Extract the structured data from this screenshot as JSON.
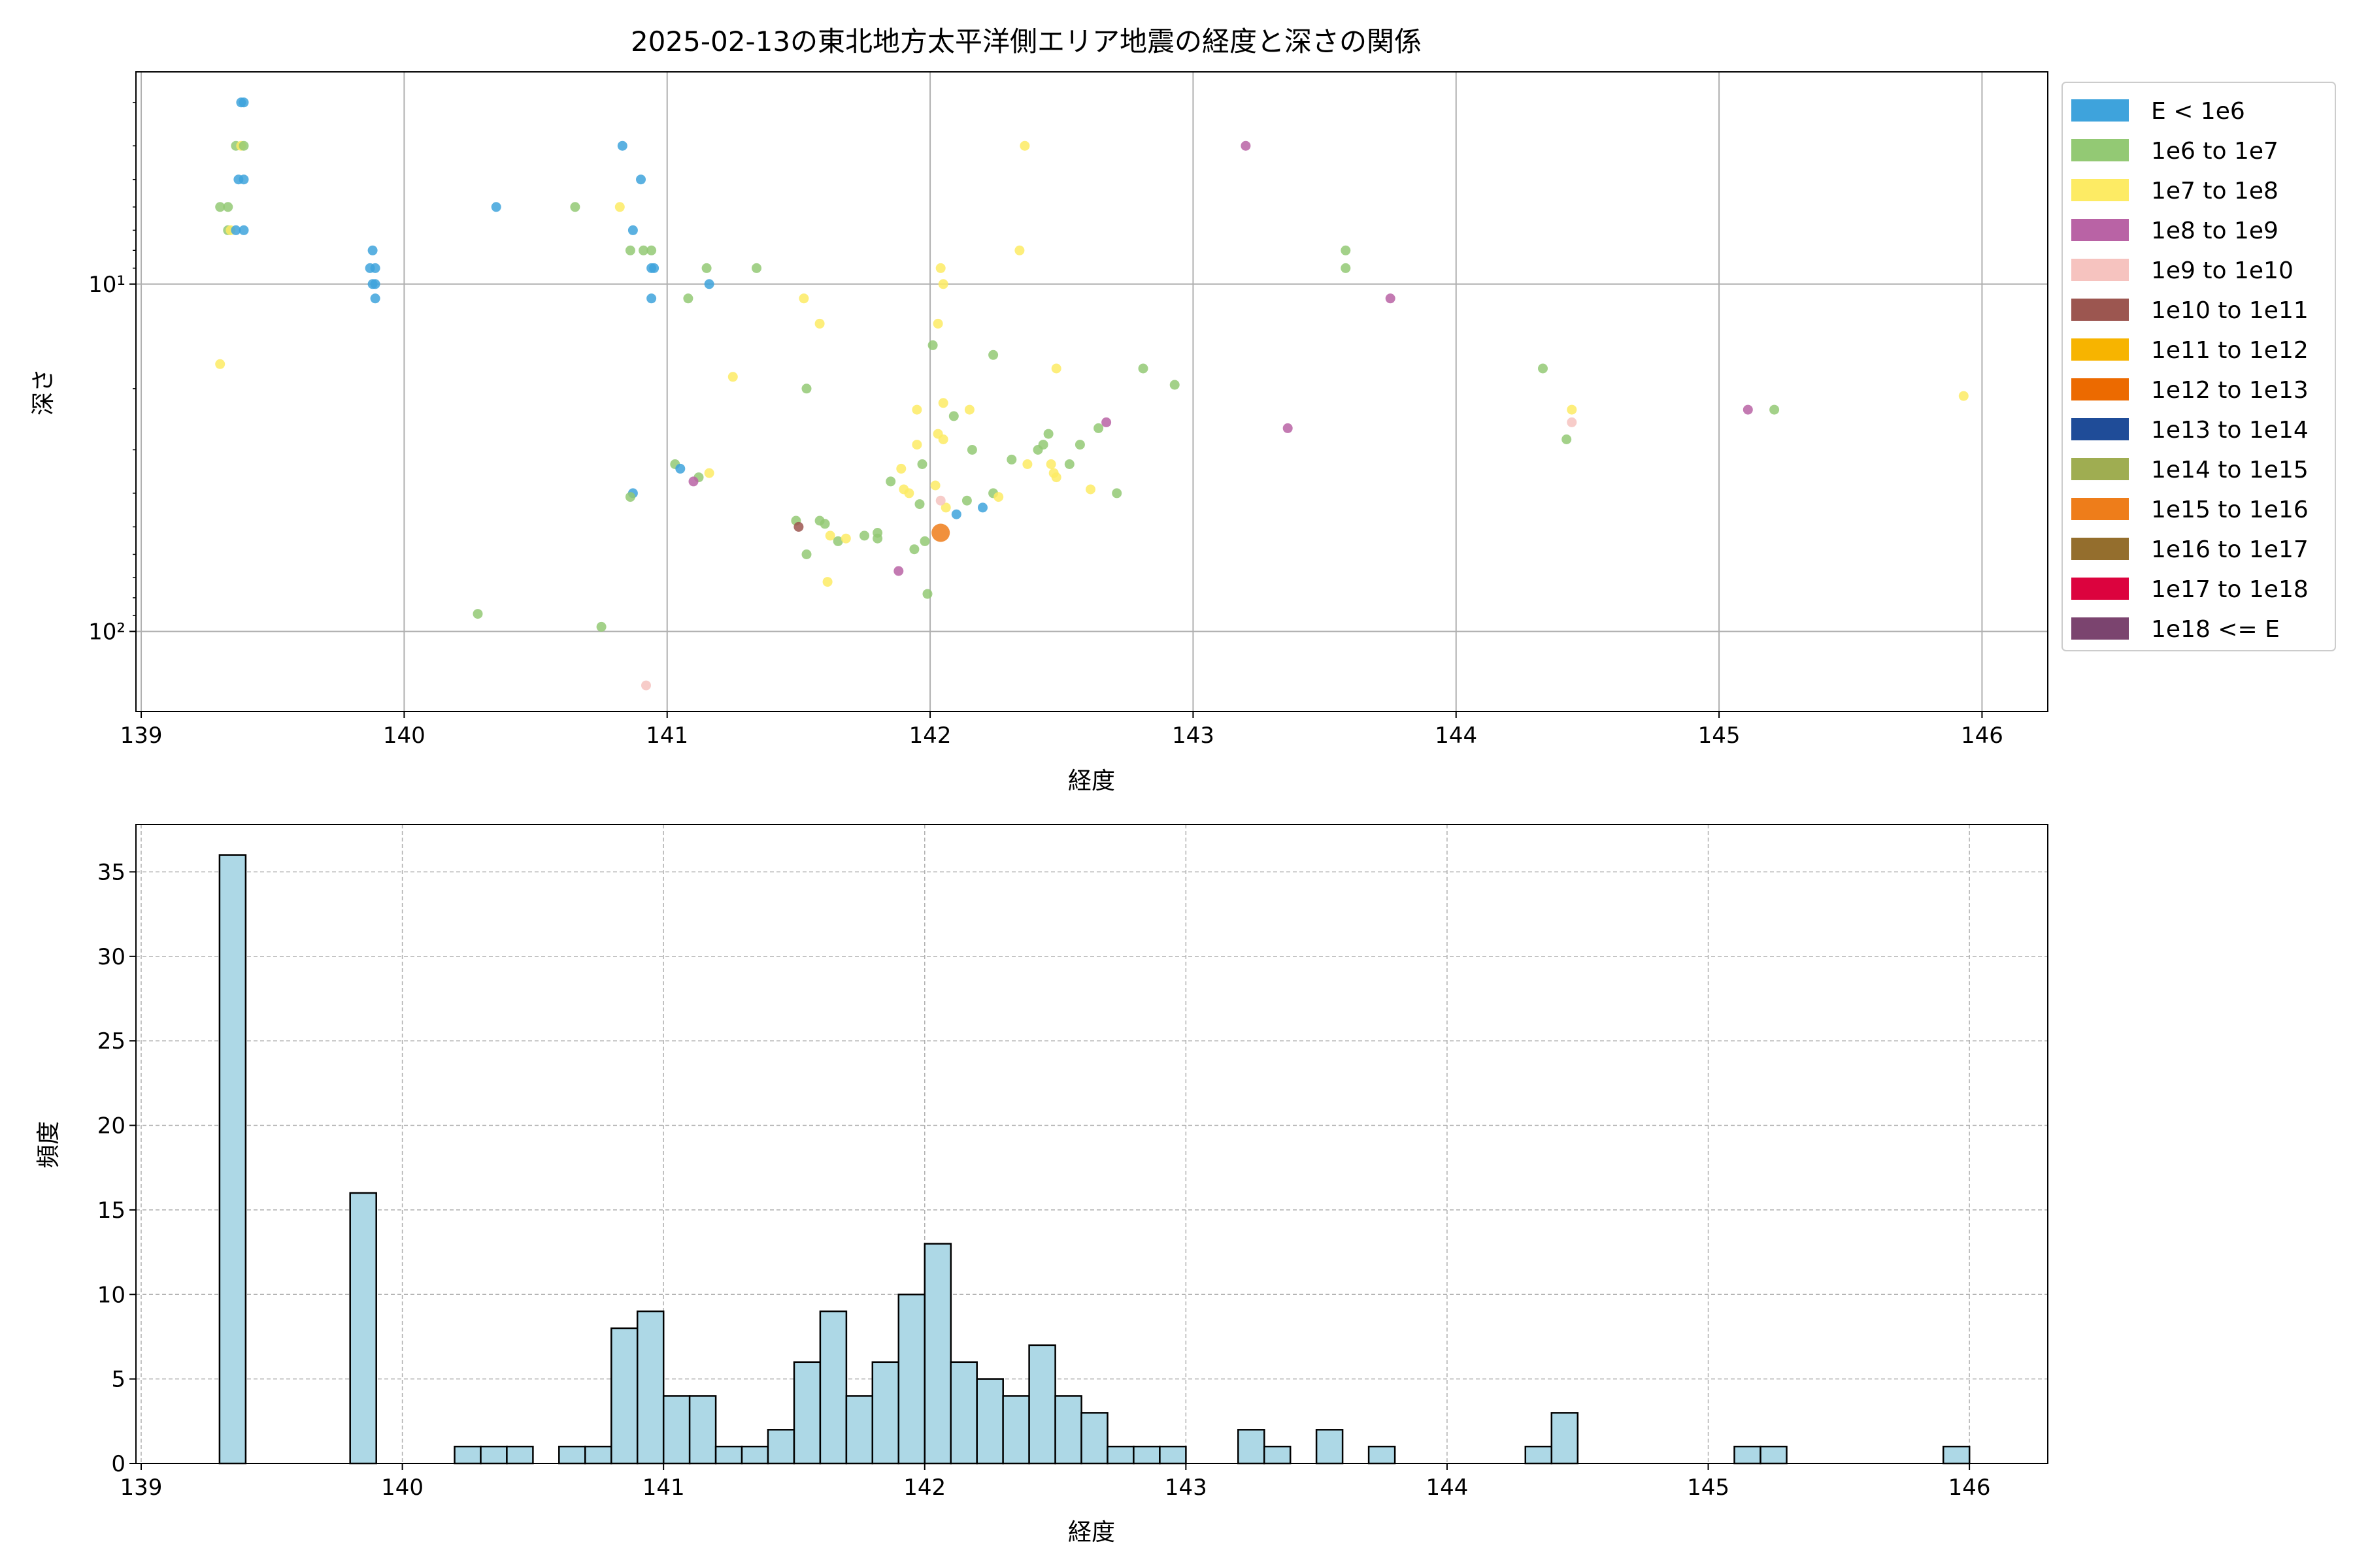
{
  "chart_data": [
    {
      "type": "scatter",
      "title": "2025-02-13の東北地方太平洋側エリア地震の経度と深さの関係",
      "xlabel": "経度",
      "ylabel": "深さ",
      "xlim": [
        138.98,
        146.25
      ],
      "ylim": [
        170,
        2.45
      ],
      "y_scale": "log",
      "y_inverted": true,
      "x_ticks": [
        139,
        140,
        141,
        142,
        143,
        144,
        145,
        146
      ],
      "y_tick_labels": [
        {
          "value": 10,
          "label": "10¹"
        },
        {
          "value": 100,
          "label": "10²"
        }
      ],
      "grid": true,
      "legend_position": "outside-right",
      "legend": [
        {
          "label": "E < 1e6",
          "color": "#3ea3dc"
        },
        {
          "label": "1e6 to 1e7",
          "color": "#93c974"
        },
        {
          "label": "1e7 to 1e8",
          "color": "#fdeb64"
        },
        {
          "label": "1e8 to 1e9",
          "color": "#b963a5"
        },
        {
          "label": "1e9 to 1e10",
          "color": "#f6c3bf"
        },
        {
          "label": "1e10 to 1e11",
          "color": "#9c5650"
        },
        {
          "label": "1e11 to 1e12",
          "color": "#f7b400"
        },
        {
          "label": "1e12 to 1e13",
          "color": "#ec6a00"
        },
        {
          "label": "1e13 to 1e14",
          "color": "#1f4c98"
        },
        {
          "label": "1e14 to 1e15",
          "color": "#9fad51"
        },
        {
          "label": "1e15 to 1e16",
          "color": "#ee7d1a"
        },
        {
          "label": "1e16 to 1e17",
          "color": "#946e2d"
        },
        {
          "label": "1e17 to 1e18",
          "color": "#dc033e"
        },
        {
          "label": "1e18 <= E",
          "color": "#7b446f"
        }
      ],
      "points": [
        {
          "x": 139.38,
          "y": 3.0,
          "c": 0
        },
        {
          "x": 139.39,
          "y": 3.0,
          "c": 0
        },
        {
          "x": 139.36,
          "y": 4.0,
          "c": 1
        },
        {
          "x": 139.38,
          "y": 4.0,
          "c": 2
        },
        {
          "x": 139.39,
          "y": 4.0,
          "c": 1
        },
        {
          "x": 139.37,
          "y": 5.0,
          "c": 0
        },
        {
          "x": 139.39,
          "y": 5.0,
          "c": 0
        },
        {
          "x": 139.3,
          "y": 6.0,
          "c": 1
        },
        {
          "x": 139.33,
          "y": 6.0,
          "c": 1
        },
        {
          "x": 139.33,
          "y": 7.0,
          "c": 1
        },
        {
          "x": 139.34,
          "y": 7.0,
          "c": 2
        },
        {
          "x": 139.36,
          "y": 7.0,
          "c": 0
        },
        {
          "x": 139.39,
          "y": 7.0,
          "c": 0
        },
        {
          "x": 139.88,
          "y": 8.0,
          "c": 0
        },
        {
          "x": 139.87,
          "y": 9.0,
          "c": 0
        },
        {
          "x": 139.89,
          "y": 9.0,
          "c": 0
        },
        {
          "x": 139.88,
          "y": 10.0,
          "c": 0
        },
        {
          "x": 139.89,
          "y": 10.0,
          "c": 0
        },
        {
          "x": 139.89,
          "y": 11.0,
          "c": 0
        },
        {
          "x": 139.3,
          "y": 17.0,
          "c": 2
        },
        {
          "x": 140.35,
          "y": 6.0,
          "c": 0
        },
        {
          "x": 140.65,
          "y": 6.0,
          "c": 1
        },
        {
          "x": 140.82,
          "y": 6.0,
          "c": 2
        },
        {
          "x": 140.83,
          "y": 4.0,
          "c": 0
        },
        {
          "x": 140.9,
          "y": 5.0,
          "c": 0
        },
        {
          "x": 140.87,
          "y": 7.0,
          "c": 0
        },
        {
          "x": 140.86,
          "y": 8.0,
          "c": 1
        },
        {
          "x": 140.91,
          "y": 8.0,
          "c": 1
        },
        {
          "x": 140.94,
          "y": 8.0,
          "c": 1
        },
        {
          "x": 140.94,
          "y": 9.0,
          "c": 0
        },
        {
          "x": 140.95,
          "y": 9.0,
          "c": 0
        },
        {
          "x": 140.94,
          "y": 11.0,
          "c": 0
        },
        {
          "x": 141.08,
          "y": 11.0,
          "c": 1
        },
        {
          "x": 141.15,
          "y": 9.0,
          "c": 1
        },
        {
          "x": 141.16,
          "y": 10.0,
          "c": 0
        },
        {
          "x": 141.34,
          "y": 9.0,
          "c": 1
        },
        {
          "x": 141.25,
          "y": 18.5,
          "c": 2
        },
        {
          "x": 141.03,
          "y": 33.0,
          "c": 1
        },
        {
          "x": 141.05,
          "y": 34.0,
          "c": 0
        },
        {
          "x": 141.16,
          "y": 35.0,
          "c": 2
        },
        {
          "x": 141.12,
          "y": 36.0,
          "c": 1
        },
        {
          "x": 141.1,
          "y": 37.0,
          "c": 3
        },
        {
          "x": 140.87,
          "y": 40.0,
          "c": 0
        },
        {
          "x": 140.86,
          "y": 41.0,
          "c": 1
        },
        {
          "x": 140.28,
          "y": 89.0,
          "c": 1
        },
        {
          "x": 140.75,
          "y": 97.0,
          "c": 1
        },
        {
          "x": 140.92,
          "y": 143.0,
          "c": 4
        },
        {
          "x": 141.52,
          "y": 11.0,
          "c": 2
        },
        {
          "x": 141.58,
          "y": 13.0,
          "c": 2
        },
        {
          "x": 141.53,
          "y": 20.0,
          "c": 1
        },
        {
          "x": 141.49,
          "y": 48.0,
          "c": 1
        },
        {
          "x": 141.5,
          "y": 50.0,
          "c": 5
        },
        {
          "x": 141.58,
          "y": 48.0,
          "c": 1
        },
        {
          "x": 141.6,
          "y": 49.0,
          "c": 1
        },
        {
          "x": 141.62,
          "y": 53.0,
          "c": 2
        },
        {
          "x": 141.65,
          "y": 55.0,
          "c": 1
        },
        {
          "x": 141.68,
          "y": 54.0,
          "c": 2
        },
        {
          "x": 141.75,
          "y": 53.0,
          "c": 1
        },
        {
          "x": 141.8,
          "y": 52.0,
          "c": 1
        },
        {
          "x": 141.8,
          "y": 54.0,
          "c": 1
        },
        {
          "x": 141.53,
          "y": 60.0,
          "c": 1
        },
        {
          "x": 141.61,
          "y": 72.0,
          "c": 2
        },
        {
          "x": 141.85,
          "y": 37.0,
          "c": 1
        },
        {
          "x": 141.89,
          "y": 34.0,
          "c": 2
        },
        {
          "x": 141.9,
          "y": 39.0,
          "c": 2
        },
        {
          "x": 141.92,
          "y": 40.0,
          "c": 2
        },
        {
          "x": 141.95,
          "y": 29.0,
          "c": 2
        },
        {
          "x": 141.97,
          "y": 33.0,
          "c": 1
        },
        {
          "x": 141.96,
          "y": 43.0,
          "c": 1
        },
        {
          "x": 141.94,
          "y": 58.0,
          "c": 1
        },
        {
          "x": 141.98,
          "y": 55.0,
          "c": 1
        },
        {
          "x": 141.88,
          "y": 67.0,
          "c": 3
        },
        {
          "x": 141.99,
          "y": 78.0,
          "c": 1
        },
        {
          "x": 141.95,
          "y": 23.0,
          "c": 2
        },
        {
          "x": 142.01,
          "y": 15.0,
          "c": 1
        },
        {
          "x": 142.03,
          "y": 13.0,
          "c": 2
        },
        {
          "x": 142.04,
          "y": 9.0,
          "c": 2
        },
        {
          "x": 142.05,
          "y": 10.0,
          "c": 2
        },
        {
          "x": 142.05,
          "y": 22.0,
          "c": 2
        },
        {
          "x": 142.03,
          "y": 27.0,
          "c": 2
        },
        {
          "x": 142.05,
          "y": 28.0,
          "c": 2
        },
        {
          "x": 142.09,
          "y": 24.0,
          "c": 1
        },
        {
          "x": 142.15,
          "y": 23.0,
          "c": 2
        },
        {
          "x": 142.16,
          "y": 30.0,
          "c": 1
        },
        {
          "x": 142.02,
          "y": 38.0,
          "c": 2
        },
        {
          "x": 142.06,
          "y": 44.0,
          "c": 2
        },
        {
          "x": 142.1,
          "y": 46.0,
          "c": 0
        },
        {
          "x": 142.14,
          "y": 42.0,
          "c": 1
        },
        {
          "x": 142.04,
          "y": 42.0,
          "c": 4
        },
        {
          "x": 142.04,
          "y": 52.0,
          "c": 10
        },
        {
          "x": 142.24,
          "y": 16.0,
          "c": 1
        },
        {
          "x": 142.2,
          "y": 44.0,
          "c": 0
        },
        {
          "x": 142.24,
          "y": 40.0,
          "c": 1
        },
        {
          "x": 142.26,
          "y": 41.0,
          "c": 2
        },
        {
          "x": 142.31,
          "y": 32.0,
          "c": 1
        },
        {
          "x": 142.34,
          "y": 8.0,
          "c": 2
        },
        {
          "x": 142.36,
          "y": 4.0,
          "c": 2
        },
        {
          "x": 142.37,
          "y": 33.0,
          "c": 2
        },
        {
          "x": 142.41,
          "y": 30.0,
          "c": 1
        },
        {
          "x": 142.43,
          "y": 29.0,
          "c": 1
        },
        {
          "x": 142.45,
          "y": 27.0,
          "c": 1
        },
        {
          "x": 142.46,
          "y": 33.0,
          "c": 2
        },
        {
          "x": 142.47,
          "y": 35.0,
          "c": 2
        },
        {
          "x": 142.48,
          "y": 36.0,
          "c": 2
        },
        {
          "x": 142.48,
          "y": 17.5,
          "c": 2
        },
        {
          "x": 142.53,
          "y": 33.0,
          "c": 1
        },
        {
          "x": 142.57,
          "y": 29.0,
          "c": 1
        },
        {
          "x": 142.61,
          "y": 39.0,
          "c": 2
        },
        {
          "x": 142.64,
          "y": 26.0,
          "c": 1
        },
        {
          "x": 142.67,
          "y": 25.0,
          "c": 3
        },
        {
          "x": 142.71,
          "y": 40.0,
          "c": 1
        },
        {
          "x": 142.81,
          "y": 17.5,
          "c": 1
        },
        {
          "x": 142.93,
          "y": 19.5,
          "c": 1
        },
        {
          "x": 143.2,
          "y": 4.0,
          "c": 3
        },
        {
          "x": 143.36,
          "y": 26.0,
          "c": 3
        },
        {
          "x": 143.58,
          "y": 8.0,
          "c": 1
        },
        {
          "x": 143.58,
          "y": 9.0,
          "c": 1
        },
        {
          "x": 143.75,
          "y": 11.0,
          "c": 3
        },
        {
          "x": 144.33,
          "y": 17.5,
          "c": 1
        },
        {
          "x": 144.42,
          "y": 28.0,
          "c": 1
        },
        {
          "x": 144.44,
          "y": 23.0,
          "c": 2
        },
        {
          "x": 144.44,
          "y": 25.0,
          "c": 4
        },
        {
          "x": 145.11,
          "y": 23.0,
          "c": 3
        },
        {
          "x": 145.21,
          "y": 23.0,
          "c": 1
        },
        {
          "x": 145.93,
          "y": 21.0,
          "c": 2
        }
      ]
    },
    {
      "type": "bar",
      "title": "",
      "xlabel": "経度",
      "ylabel": "頻度",
      "xlim": [
        138.98,
        146.3
      ],
      "ylim": [
        0,
        37.8
      ],
      "x_ticks": [
        139,
        140,
        141,
        142,
        143,
        144,
        145,
        146
      ],
      "y_ticks": [
        0,
        5,
        10,
        15,
        20,
        25,
        30,
        35
      ],
      "grid": true,
      "bar_color": "#add8e6",
      "bin_start": 139.3,
      "bin_width": 0.1,
      "bins": [
        {
          "x": 139.3,
          "value": 36
        },
        {
          "x": 139.8,
          "value": 16
        },
        {
          "x": 140.2,
          "value": 1
        },
        {
          "x": 140.3,
          "value": 1
        },
        {
          "x": 140.4,
          "value": 1
        },
        {
          "x": 140.6,
          "value": 1
        },
        {
          "x": 140.7,
          "value": 1
        },
        {
          "x": 140.8,
          "value": 8
        },
        {
          "x": 140.9,
          "value": 9
        },
        {
          "x": 141.0,
          "value": 4
        },
        {
          "x": 141.1,
          "value": 4
        },
        {
          "x": 141.2,
          "value": 1
        },
        {
          "x": 141.3,
          "value": 1
        },
        {
          "x": 141.4,
          "value": 2
        },
        {
          "x": 141.5,
          "value": 6
        },
        {
          "x": 141.6,
          "value": 9
        },
        {
          "x": 141.7,
          "value": 4
        },
        {
          "x": 141.8,
          "value": 6
        },
        {
          "x": 141.9,
          "value": 10
        },
        {
          "x": 142.0,
          "value": 13
        },
        {
          "x": 142.1,
          "value": 6
        },
        {
          "x": 142.2,
          "value": 5
        },
        {
          "x": 142.3,
          "value": 4
        },
        {
          "x": 142.4,
          "value": 7
        },
        {
          "x": 142.5,
          "value": 4
        },
        {
          "x": 142.6,
          "value": 3
        },
        {
          "x": 142.7,
          "value": 1
        },
        {
          "x": 142.8,
          "value": 1
        },
        {
          "x": 142.9,
          "value": 1
        },
        {
          "x": 143.2,
          "value": 2
        },
        {
          "x": 143.3,
          "value": 1
        },
        {
          "x": 143.5,
          "value": 2
        },
        {
          "x": 143.7,
          "value": 1
        },
        {
          "x": 144.3,
          "value": 1
        },
        {
          "x": 144.4,
          "value": 3
        },
        {
          "x": 145.1,
          "value": 1
        },
        {
          "x": 145.2,
          "value": 1
        },
        {
          "x": 145.9,
          "value": 1
        }
      ]
    }
  ]
}
